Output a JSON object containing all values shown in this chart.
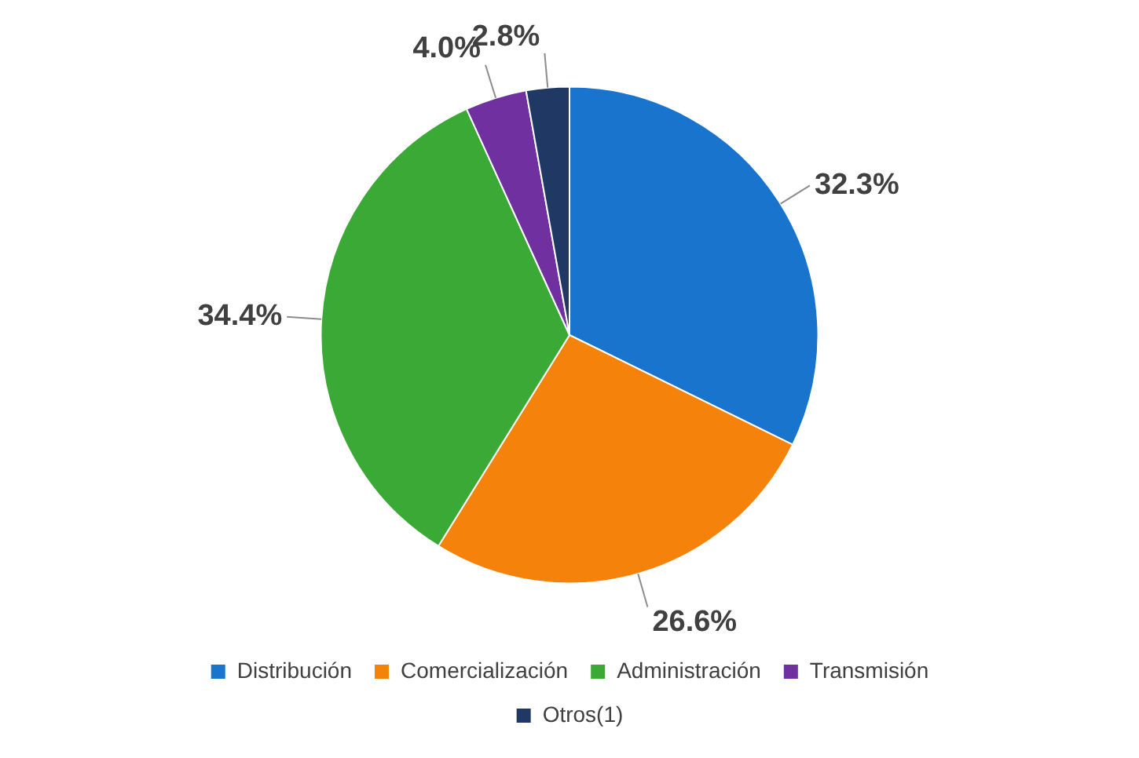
{
  "chart_data": {
    "type": "pie",
    "categories": [
      "Distribución",
      "Comercialización",
      "Administración",
      "Transmisión",
      "Otros(1)"
    ],
    "values": [
      32.3,
      26.6,
      34.4,
      4.0,
      2.8
    ],
    "colors": [
      "#1874cd",
      "#f5820a",
      "#3aa935",
      "#7030a0",
      "#1f3864"
    ],
    "value_labels": [
      "32.3%",
      "26.6%",
      "34.4%",
      "4.0%",
      "2.8%"
    ],
    "legend": "bottom"
  }
}
